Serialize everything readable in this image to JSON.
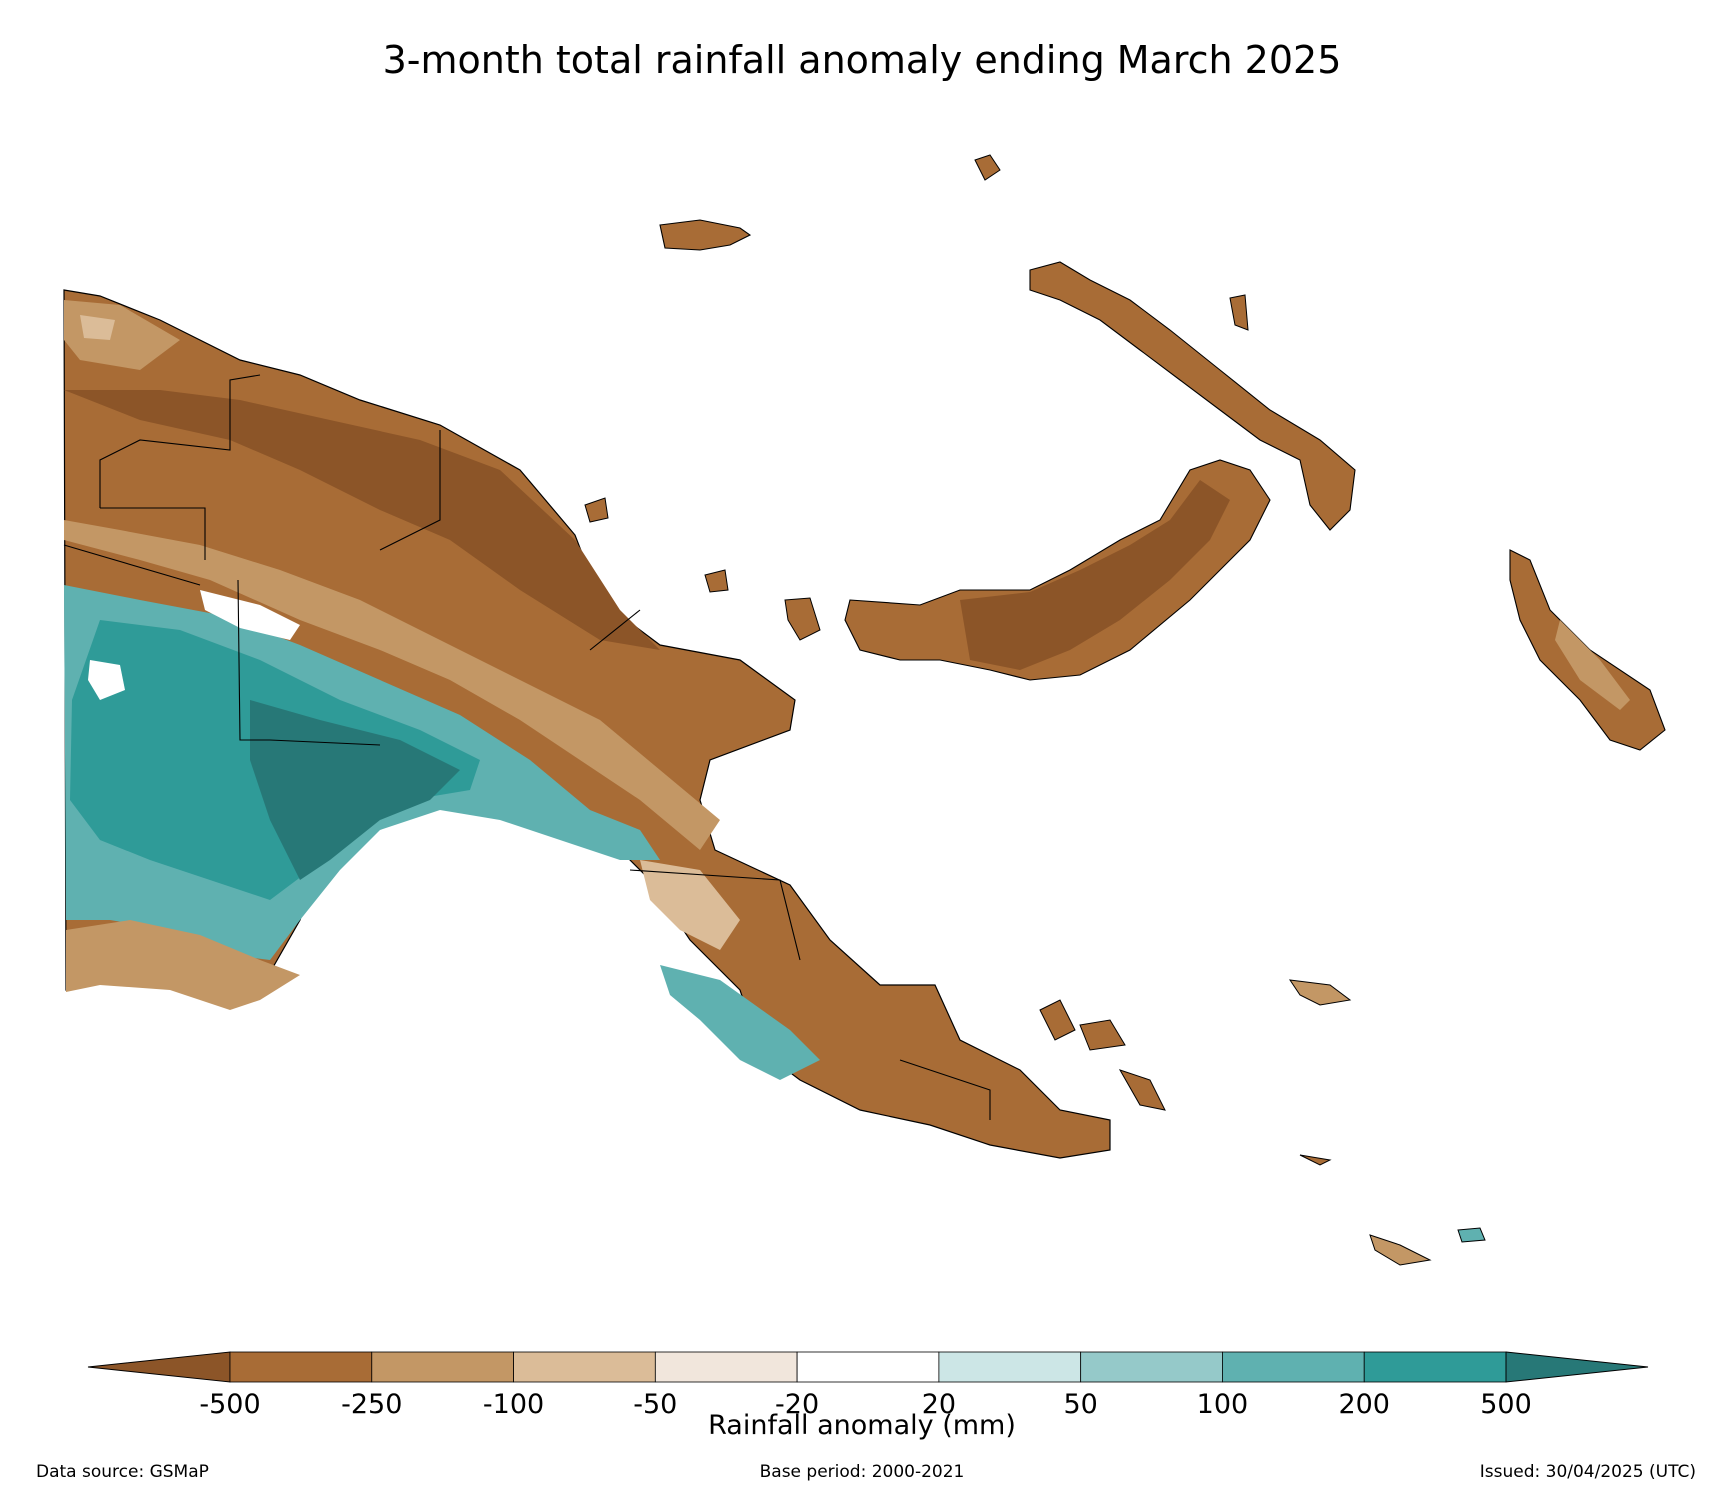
{
  "title": "3-month total rainfall anomaly ending March 2025",
  "colorbar": {
    "label": "Rainfall anomaly (mm)",
    "ticks": [
      "-500",
      "-250",
      "-100",
      "-50",
      "-20",
      "20",
      "50",
      "100",
      "200",
      "500"
    ],
    "colors": [
      "#8c5528",
      "#a86c36",
      "#c39765",
      "#dbbc98",
      "#f1e6dc",
      "#ffffff",
      "#cce6e6",
      "#95c9c9",
      "#5fb1b0",
      "#2f9b98",
      "#277877"
    ],
    "extend": "both"
  },
  "map": {
    "region": "Papua New Guinea",
    "border_color": "#000000"
  },
  "footer": {
    "data_source": "Data source: GSMaP",
    "base_period": "Base period: 2000-2021",
    "issued": "Issued: 30/04/2025 (UTC)"
  }
}
